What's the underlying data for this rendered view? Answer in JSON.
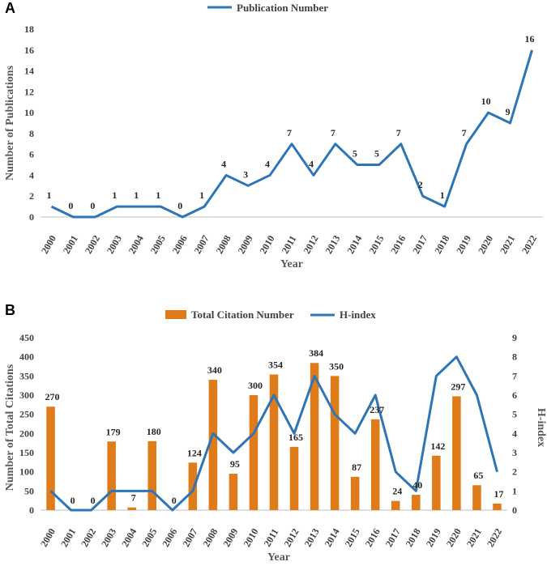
{
  "panels": {
    "a": {
      "letter": "A"
    },
    "b": {
      "letter": "B"
    }
  },
  "chart_data": [
    {
      "type": "line",
      "title": "",
      "legend": [
        "Publication Number"
      ],
      "categories": [
        "2000",
        "2001",
        "2002",
        "2003",
        "2004",
        "2005",
        "2006",
        "2007",
        "2008",
        "2009",
        "2010",
        "2011",
        "2012",
        "2013",
        "2014",
        "2015",
        "2016",
        "2017",
        "2018",
        "2019",
        "2020",
        "2021",
        "2022"
      ],
      "series": [
        {
          "name": "Publication Number",
          "color": "#2e75b6",
          "values": [
            1,
            0,
            0,
            1,
            1,
            1,
            0,
            1,
            4,
            3,
            4,
            7,
            4,
            7,
            5,
            5,
            7,
            2,
            1,
            7,
            10,
            9,
            16
          ]
        }
      ],
      "xlabel": "Year",
      "ylabel": "Number of Publications",
      "ylim": [
        0,
        18
      ],
      "yticks": [
        0,
        2,
        4,
        6,
        8,
        10,
        12,
        14,
        16,
        18
      ],
      "legend_position": "top-center"
    },
    {
      "type": "bar",
      "title": "",
      "legend": [
        "Total Citation Number",
        "H-index"
      ],
      "categories": [
        "2000",
        "2001",
        "2002",
        "2003",
        "2004",
        "2005",
        "2006",
        "2007",
        "2008",
        "2009",
        "2010",
        "2011",
        "2012",
        "2013",
        "2014",
        "2015",
        "2016",
        "2017",
        "2018",
        "2019",
        "2020",
        "2021",
        "2022"
      ],
      "series": [
        {
          "name": "Total Citation Number",
          "type": "bar",
          "axis": "left",
          "color": "#e07b1a",
          "values": [
            270,
            0,
            0,
            179,
            7,
            180,
            0,
            124,
            340,
            95,
            300,
            354,
            165,
            384,
            350,
            87,
            237,
            24,
            40,
            142,
            297,
            65,
            17
          ],
          "labels": [
            "270",
            "0",
            "0",
            "179",
            "7",
            "180",
            "0",
            "124",
            "340",
            "95",
            "300",
            "354",
            "165",
            "384",
            "350",
            "87",
            "237",
            "24",
            "40",
            "142",
            "297",
            "65",
            "17"
          ]
        },
        {
          "name": "H-index",
          "type": "line",
          "axis": "right",
          "color": "#2e75b6",
          "values": [
            1,
            0,
            0,
            1,
            1,
            1,
            0,
            1,
            4,
            3,
            4,
            6,
            4,
            7,
            5,
            4,
            6,
            2,
            1,
            7,
            8,
            6,
            2
          ]
        }
      ],
      "xlabel": "Year",
      "ylabel": "Number of Total Citations",
      "y2label": "H-index",
      "ylim": [
        0,
        450
      ],
      "yticks": [
        0,
        50,
        100,
        150,
        200,
        250,
        300,
        350,
        400,
        450
      ],
      "y2lim": [
        0,
        9
      ],
      "y2ticks": [
        0,
        1,
        2,
        3,
        4,
        5,
        6,
        7,
        8,
        9
      ],
      "legend_position": "top-center"
    }
  ]
}
